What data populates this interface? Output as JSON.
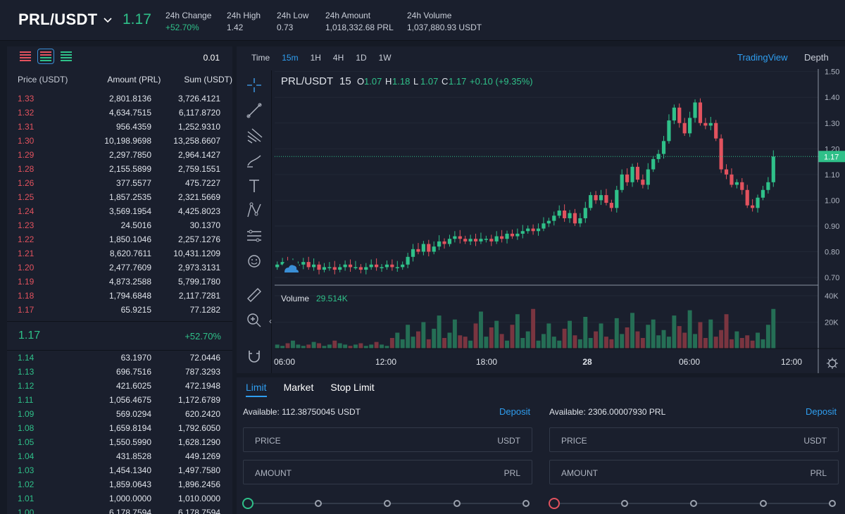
{
  "header": {
    "pair": "PRL/USDT",
    "last_price": "1.17",
    "stats": [
      {
        "label": "24h Change",
        "value": "+52.70%",
        "up": true
      },
      {
        "label": "24h High",
        "value": "1.42",
        "up": false
      },
      {
        "label": "24h Low",
        "value": "0.73",
        "up": false
      },
      {
        "label": "24h Amount",
        "value": "1,018,332.68 PRL",
        "up": false
      },
      {
        "label": "24h Volume",
        "value": "1,037,880.93 USDT",
        "up": false
      }
    ]
  },
  "orderbook": {
    "precision": "0.01",
    "columns": [
      "Price (USDT)",
      "Amount (PRL)",
      "Sum (USDT)"
    ],
    "asks": [
      [
        "1.33",
        "2,801.8136",
        "3,726.4121"
      ],
      [
        "1.32",
        "4,634.7515",
        "6,117.8720"
      ],
      [
        "1.31",
        "956.4359",
        "1,252.9310"
      ],
      [
        "1.30",
        "10,198.9698",
        "13,258.6607"
      ],
      [
        "1.29",
        "2,297.7850",
        "2,964.1427"
      ],
      [
        "1.28",
        "2,155.5899",
        "2,759.1551"
      ],
      [
        "1.26",
        "377.5577",
        "475.7227"
      ],
      [
        "1.25",
        "1,857.2535",
        "2,321.5669"
      ],
      [
        "1.24",
        "3,569.1954",
        "4,425.8023"
      ],
      [
        "1.23",
        "24.5016",
        "30.1370"
      ],
      [
        "1.22",
        "1,850.1046",
        "2,257.1276"
      ],
      [
        "1.21",
        "8,620.7611",
        "10,431.1209"
      ],
      [
        "1.20",
        "2,477.7609",
        "2,973.3131"
      ],
      [
        "1.19",
        "4,873.2588",
        "5,799.1780"
      ],
      [
        "1.18",
        "1,794.6848",
        "2,117.7281"
      ],
      [
        "1.17",
        "65.9215",
        "77.1282"
      ]
    ],
    "mid_price": "1.17",
    "mid_change": "+52.70%",
    "bids": [
      [
        "1.14",
        "63.1970",
        "72.0446"
      ],
      [
        "1.13",
        "696.7516",
        "787.3293"
      ],
      [
        "1.12",
        "421.6025",
        "472.1948"
      ],
      [
        "1.11",
        "1,056.4675",
        "1,172.6789"
      ],
      [
        "1.09",
        "569.0294",
        "620.2420"
      ],
      [
        "1.08",
        "1,659.8194",
        "1,792.6050"
      ],
      [
        "1.05",
        "1,550.5990",
        "1,628.1290"
      ],
      [
        "1.04",
        "431.8528",
        "449.1269"
      ],
      [
        "1.03",
        "1,454.1340",
        "1,497.7580"
      ],
      [
        "1.02",
        "1,859.0643",
        "1,896.2456"
      ],
      [
        "1.01",
        "1,000.0000",
        "1,010.0000"
      ],
      [
        "1.00",
        "6,178.7594",
        "6,178.7594"
      ]
    ]
  },
  "chart": {
    "timeframes": [
      "Time",
      "15m",
      "1H",
      "4H",
      "1D",
      "1W"
    ],
    "active_timeframe": "15m",
    "views": [
      "TradingView",
      "Depth"
    ],
    "active_view": "TradingView",
    "legend_pair": "PRL/USDT",
    "legend_interval": "15",
    "ohlc": [
      {
        "k": "O",
        "v": "1.07"
      },
      {
        "k": "H",
        "v": "1.18"
      },
      {
        "k": "L",
        "v": "1.07"
      },
      {
        "k": "C",
        "v": "1.17"
      }
    ],
    "change": "+0.10 (+9.35%)",
    "volume_label": "Volume",
    "volume_value": "29.514K",
    "last_price_tag": "1.17",
    "colors": {
      "up": "#2fc089",
      "down": "#e2525e",
      "accent": "#2f9ef0"
    },
    "tools": [
      "crosshair-icon",
      "trend-line-icon",
      "fib-icon",
      "brush-icon",
      "text-icon",
      "pattern-icon",
      "measure-lines-icon",
      "emoji-icon",
      "ruler-icon",
      "zoom-in-icon",
      "magnet-icon"
    ]
  },
  "chart_data": {
    "type": "candlestick",
    "price_axis": [
      "1.50",
      "1.40",
      "1.30",
      "1.20",
      "1.10",
      "1.00",
      "0.90",
      "0.80",
      "0.70"
    ],
    "volume_axis": [
      "40K",
      "20K"
    ],
    "time_axis": [
      "06:00",
      "12:00",
      "18:00",
      "28",
      "06:00",
      "12:00"
    ],
    "ylim": [
      0.67,
      1.51
    ],
    "closes": [
      0.75,
      0.76,
      0.74,
      0.75,
      0.75,
      0.76,
      0.74,
      0.75,
      0.73,
      0.74,
      0.74,
      0.73,
      0.74,
      0.75,
      0.74,
      0.74,
      0.73,
      0.74,
      0.75,
      0.74,
      0.74,
      0.75,
      0.74,
      0.74,
      0.75,
      0.78,
      0.81,
      0.8,
      0.83,
      0.8,
      0.82,
      0.84,
      0.83,
      0.85,
      0.86,
      0.85,
      0.84,
      0.85,
      0.84,
      0.85,
      0.85,
      0.84,
      0.86,
      0.85,
      0.87,
      0.86,
      0.87,
      0.88,
      0.89,
      0.88,
      0.89,
      0.91,
      0.92,
      0.94,
      0.96,
      0.93,
      0.95,
      0.91,
      0.93,
      0.97,
      1.02,
      1.0,
      1.02,
      0.99,
      0.97,
      1.04,
      1.1,
      1.07,
      1.13,
      1.08,
      1.06,
      1.12,
      1.16,
      1.18,
      1.23,
      1.31,
      1.36,
      1.3,
      1.26,
      1.32,
      1.38,
      1.3,
      1.29,
      1.3,
      1.24,
      1.12,
      1.1,
      1.06,
      1.07,
      1.04,
      0.98,
      0.97,
      1.01,
      1.04,
      1.07,
      1.17
    ],
    "volumes": [
      3,
      2,
      4,
      6,
      3,
      2,
      3,
      5,
      4,
      2,
      3,
      6,
      4,
      3,
      2,
      3,
      4,
      2,
      3,
      5,
      3,
      2,
      8,
      12,
      7,
      18,
      9,
      13,
      20,
      7,
      15,
      25,
      8,
      12,
      22,
      10,
      9,
      6,
      19,
      28,
      9,
      16,
      21,
      11,
      6,
      18,
      26,
      8,
      13,
      30,
      6,
      11,
      19,
      9,
      6,
      15,
      21,
      10,
      7,
      24,
      8,
      13,
      19,
      9,
      7,
      23,
      11,
      16,
      27,
      13,
      8,
      18,
      22,
      10,
      14,
      9,
      25,
      17,
      12,
      29,
      11,
      20,
      8,
      22,
      9,
      14,
      26,
      7,
      13,
      8,
      10,
      6,
      12,
      7,
      18,
      30
    ]
  },
  "form": {
    "tabs": [
      "Limit",
      "Market",
      "Stop Limit"
    ],
    "active_tab": "Limit",
    "buy": {
      "available": "Available: 112.38750045 USDT",
      "deposit": "Deposit",
      "price_label": "PRICE",
      "price_unit": "USDT",
      "amount_label": "AMOUNT",
      "amount_unit": "PRL"
    },
    "sell": {
      "available": "Available: 2306.00007930 PRL",
      "deposit": "Deposit",
      "price_label": "PRICE",
      "price_unit": "USDT",
      "amount_label": "AMOUNT",
      "amount_unit": "PRL"
    }
  }
}
